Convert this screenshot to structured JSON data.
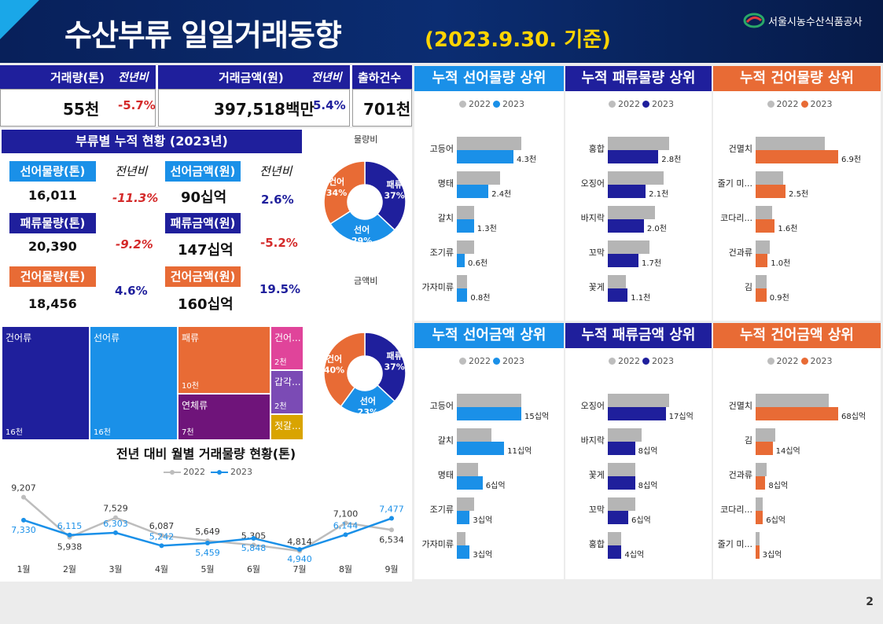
{
  "header": {
    "title": "수산부류 일일거래동향",
    "date": "(2023.9.30. 기준)",
    "org": "서울시농수산식품공사"
  },
  "summary": {
    "volume_label": "거래량(톤)",
    "volume_yoy_label": "전년비",
    "amount_label": "거래금액(원)",
    "amount_yoy_label": "전년비",
    "count_label": "출하건수",
    "volume_value": "55천",
    "volume_yoy": "-5.7%",
    "amount_value": "397,518백만",
    "amount_yoy": "5.4%",
    "count_value": "701천"
  },
  "cumulative": {
    "title": "부류별 누적 현황 (2023년)",
    "yoy_label": "전년비",
    "rows": [
      {
        "vol_label": "선어물량(톤)",
        "vol_value": "16,011",
        "vol_yoy": "-11.3%",
        "amt_label": "선어금액(원)",
        "amt_value": "90십억",
        "amt_yoy": "2.6%"
      },
      {
        "vol_label": "패류물량(톤)",
        "vol_value": "20,390",
        "vol_yoy": "-9.2%",
        "amt_label": "패류금액(원)",
        "amt_value": "147십억",
        "amt_yoy": "-5.2%"
      },
      {
        "vol_label": "건어물량(톤)",
        "vol_value": "18,456",
        "vol_yoy": "4.6%",
        "amt_label": "건어금액(원)",
        "amt_value": "160십억",
        "amt_yoy": "19.5%"
      }
    ]
  },
  "donuts": {
    "volume": {
      "title": "물량비",
      "slices": [
        {
          "name": "패류",
          "pct": 37,
          "label": "37%",
          "color": "#1f1f9c"
        },
        {
          "name": "선어",
          "pct": 29,
          "label": "29%",
          "color": "#1a90e8"
        },
        {
          "name": "건어",
          "pct": 34,
          "label": "34%",
          "color": "#e86b35"
        }
      ]
    },
    "amount": {
      "title": "금액비",
      "slices": [
        {
          "name": "패류",
          "pct": 37,
          "label": "37%",
          "color": "#1f1f9c"
        },
        {
          "name": "선어",
          "pct": 23,
          "label": "23%",
          "color": "#1a90e8"
        },
        {
          "name": "건어",
          "pct": 40,
          "label": "40%",
          "color": "#e86b35"
        }
      ]
    }
  },
  "treemap": [
    {
      "name": "건어류",
      "value": "16천",
      "color": "#1f1f9c"
    },
    {
      "name": "선어류",
      "value": "16천",
      "color": "#1a90e8"
    },
    {
      "name": "패류",
      "value": "10천",
      "color": "#e86b35"
    },
    {
      "name": "연체류",
      "value": "7천",
      "color": "#6f147a"
    },
    {
      "name": "건어...",
      "value": "2천",
      "color": "#e0449a"
    },
    {
      "name": "갑각...",
      "value": "2천",
      "color": "#7b4bb5"
    },
    {
      "name": "젓갈...",
      "value": "",
      "color": "#d9a400"
    }
  ],
  "monthly": {
    "title": "전년 대비 월별 거래물량 현황(톤)",
    "legend": [
      "2022",
      "2023"
    ],
    "colors": {
      "y2022": "#bdbdbd",
      "y2023": "#1a90e8"
    },
    "chart_data": {
      "type": "line",
      "title": "전년 대비 월별 거래물량 현황(톤)",
      "categories": [
        "1월",
        "2월",
        "3월",
        "4월",
        "5월",
        "6월",
        "7월",
        "8월",
        "9월"
      ],
      "series": [
        {
          "name": "2022",
          "values": [
            9207,
            5938,
            7529,
            6087,
            5649,
            5305,
            4814,
            7100,
            6534
          ],
          "labels": [
            "9,207",
            "5,938",
            "7,529",
            "6,087",
            "5,649",
            "5,305",
            "4,814",
            "7,100",
            "6,534"
          ]
        },
        {
          "name": "2023",
          "values": [
            7330,
            6115,
            6303,
            5242,
            5459,
            5848,
            4940,
            6144,
            7477
          ],
          "labels": [
            "7,330",
            "6,115",
            "6,303",
            "5,242",
            "5,459",
            "5,848",
            "4,940",
            "6,144",
            "7,477"
          ]
        }
      ]
    }
  },
  "cards": [
    {
      "title": "누적 선어물량 상위",
      "head_color": "#1a90e8",
      "bar_color": "#1a90e8",
      "chart_data": {
        "type": "bar",
        "orientation": "horizontal",
        "categories": [
          "고등어",
          "명태",
          "갈치",
          "조기류",
          "가자미류"
        ],
        "unit": "천톤",
        "series": [
          {
            "name": "2022",
            "values": [
              4.9,
              3.3,
              1.3,
              1.3,
              0.8
            ]
          },
          {
            "name": "2023",
            "values": [
              4.3,
              2.4,
              1.3,
              0.6,
              0.8
            ]
          }
        ],
        "labels": [
          "4.3천",
          "2.4천",
          "1.3천",
          "0.6천",
          "0.8천"
        ]
      }
    },
    {
      "title": "누적 패류물량 상위",
      "head_color": "#1f1f9c",
      "bar_color": "#1f1f9c",
      "chart_data": {
        "type": "bar",
        "orientation": "horizontal",
        "categories": [
          "홍합",
          "오징어",
          "바지락",
          "꼬막",
          "꽃게"
        ],
        "unit": "천톤",
        "series": [
          {
            "name": "2022",
            "values": [
              3.4,
              3.1,
              2.6,
              2.3,
              1.0
            ]
          },
          {
            "name": "2023",
            "values": [
              2.8,
              2.1,
              2.0,
              1.7,
              1.1
            ]
          }
        ],
        "labels": [
          "2.8천",
          "2.1천",
          "2.0천",
          "1.7천",
          "1.1천"
        ]
      }
    },
    {
      "title": "누적 건어물량 상위",
      "head_color": "#e86b35",
      "bar_color": "#e86b35",
      "chart_data": {
        "type": "bar",
        "orientation": "horizontal",
        "categories": [
          "건멸치",
          "줄기 미...",
          "코다리...",
          "건과류",
          "김"
        ],
        "unit": "천톤",
        "series": [
          {
            "name": "2022",
            "values": [
              5.8,
              2.3,
              1.4,
              1.2,
              0.9
            ]
          },
          {
            "name": "2023",
            "values": [
              6.9,
              2.5,
              1.6,
              1.0,
              0.9
            ]
          }
        ],
        "labels": [
          "6.9천",
          "2.5천",
          "1.6천",
          "1.0천",
          "0.9천"
        ]
      }
    },
    {
      "title": "누적 선어금액 상위",
      "head_color": "#1a90e8",
      "bar_color": "#1a90e8",
      "chart_data": {
        "type": "bar",
        "orientation": "horizontal",
        "categories": [
          "고등어",
          "갈치",
          "명태",
          "조기류",
          "가자미류"
        ],
        "unit": "십억원",
        "series": [
          {
            "name": "2022",
            "values": [
              15,
              8,
              5,
              4,
              2
            ]
          },
          {
            "name": "2023",
            "values": [
              15,
              11,
              6,
              3,
              3
            ]
          }
        ],
        "labels": [
          "15십억",
          "11십억",
          "6십억",
          "3십억",
          "3십억"
        ]
      }
    },
    {
      "title": "누적 패류금액 상위",
      "head_color": "#1f1f9c",
      "bar_color": "#1f1f9c",
      "chart_data": {
        "type": "bar",
        "orientation": "horizontal",
        "categories": [
          "오징어",
          "바지락",
          "꽃게",
          "꼬막",
          "홍합"
        ],
        "unit": "십억원",
        "series": [
          {
            "name": "2022",
            "values": [
              18,
              10,
              8,
              8,
              4
            ]
          },
          {
            "name": "2023",
            "values": [
              17,
              8,
              8,
              6,
              4
            ]
          }
        ],
        "labels": [
          "17십억",
          "8십억",
          "8십억",
          "6십억",
          "4십억"
        ]
      }
    },
    {
      "title": "누적 건어금액 상위",
      "head_color": "#e86b35",
      "bar_color": "#e86b35",
      "chart_data": {
        "type": "bar",
        "orientation": "horizontal",
        "categories": [
          "건멸치",
          "김",
          "건과류",
          "코다리...",
          "줄기 미..."
        ],
        "unit": "십억원",
        "series": [
          {
            "name": "2022",
            "values": [
              60,
              16,
              9,
              6,
              3
            ]
          },
          {
            "name": "2023",
            "values": [
              68,
              14,
              8,
              6,
              3
            ]
          }
        ],
        "labels": [
          "68십억",
          "14십억",
          "8십억",
          "6십억",
          "3십억"
        ]
      }
    }
  ],
  "page_number": "2"
}
